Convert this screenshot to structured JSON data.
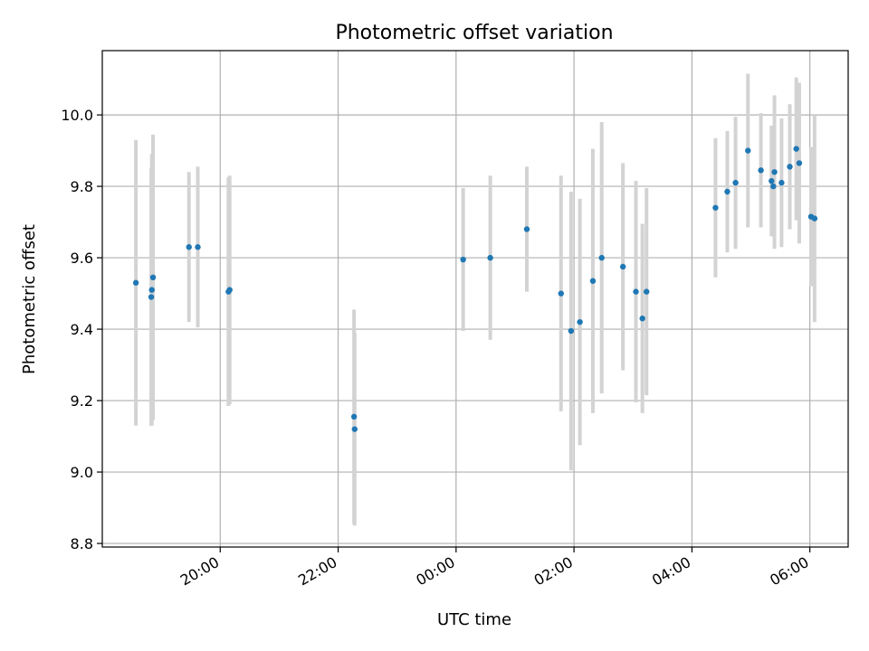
{
  "chart_data": {
    "type": "scatter",
    "title": "Photometric offset variation",
    "xlabel": "UTC time",
    "ylabel": "Photometric offset",
    "x_unit": "hours (UTC, continuing past midnight)",
    "xlim": [
      18.0,
      30.65
    ],
    "ylim": [
      8.79,
      10.18
    ],
    "x_ticks": [
      {
        "value": 20,
        "label": "20:00"
      },
      {
        "value": 22,
        "label": "22:00"
      },
      {
        "value": 24,
        "label": "00:00"
      },
      {
        "value": 26,
        "label": "02:00"
      },
      {
        "value": 28,
        "label": "04:00"
      },
      {
        "value": 30,
        "label": "06:00"
      }
    ],
    "y_ticks": [
      {
        "value": 8.8,
        "label": "8.8"
      },
      {
        "value": 9.0,
        "label": "9.0"
      },
      {
        "value": 9.2,
        "label": "9.2"
      },
      {
        "value": 9.4,
        "label": "9.4"
      },
      {
        "value": 9.6,
        "label": "9.6"
      },
      {
        "value": 9.8,
        "label": "9.8"
      },
      {
        "value": 10.0,
        "label": "10.0"
      }
    ],
    "grid": true,
    "colors": {
      "point": "#1f77b4",
      "errorbar": "#d3d3d3",
      "grid": "#b0b0b0"
    },
    "points": [
      {
        "x": 18.57,
        "y": 9.53,
        "err": 0.4
      },
      {
        "x": 18.83,
        "y": 9.49,
        "err": 0.36
      },
      {
        "x": 18.84,
        "y": 9.51,
        "err": 0.38
      },
      {
        "x": 18.86,
        "y": 9.545,
        "err": 0.4
      },
      {
        "x": 19.47,
        "y": 9.63,
        "err": 0.21
      },
      {
        "x": 19.62,
        "y": 9.63,
        "err": 0.225
      },
      {
        "x": 20.14,
        "y": 9.505,
        "err": 0.32
      },
      {
        "x": 20.16,
        "y": 9.51,
        "err": 0.32
      },
      {
        "x": 22.27,
        "y": 9.155,
        "err": 0.3
      },
      {
        "x": 22.28,
        "y": 9.12,
        "err": 0.27
      },
      {
        "x": 24.12,
        "y": 9.595,
        "err": 0.2
      },
      {
        "x": 24.58,
        "y": 9.6,
        "err": 0.23
      },
      {
        "x": 25.2,
        "y": 9.68,
        "err": 0.175
      },
      {
        "x": 25.78,
        "y": 9.5,
        "err": 0.33
      },
      {
        "x": 25.95,
        "y": 9.395,
        "err": 0.39
      },
      {
        "x": 26.1,
        "y": 9.42,
        "err": 0.345
      },
      {
        "x": 26.32,
        "y": 9.535,
        "err": 0.37
      },
      {
        "x": 26.47,
        "y": 9.6,
        "err": 0.38
      },
      {
        "x": 26.83,
        "y": 9.575,
        "err": 0.29
      },
      {
        "x": 27.05,
        "y": 9.505,
        "err": 0.31
      },
      {
        "x": 27.16,
        "y": 9.43,
        "err": 0.265
      },
      {
        "x": 27.23,
        "y": 9.505,
        "err": 0.29
      },
      {
        "x": 28.4,
        "y": 9.74,
        "err": 0.195
      },
      {
        "x": 28.6,
        "y": 9.785,
        "err": 0.17
      },
      {
        "x": 28.74,
        "y": 9.81,
        "err": 0.185
      },
      {
        "x": 28.95,
        "y": 9.9,
        "err": 0.215
      },
      {
        "x": 29.17,
        "y": 9.845,
        "err": 0.16
      },
      {
        "x": 29.35,
        "y": 9.815,
        "err": 0.155
      },
      {
        "x": 29.38,
        "y": 9.8,
        "err": 0.14
      },
      {
        "x": 29.4,
        "y": 9.84,
        "err": 0.215
      },
      {
        "x": 29.52,
        "y": 9.81,
        "err": 0.18
      },
      {
        "x": 29.66,
        "y": 9.855,
        "err": 0.175
      },
      {
        "x": 29.77,
        "y": 9.905,
        "err": 0.2
      },
      {
        "x": 29.82,
        "y": 9.865,
        "err": 0.225
      },
      {
        "x": 30.02,
        "y": 9.715,
        "err": 0.195
      },
      {
        "x": 30.08,
        "y": 9.71,
        "err": 0.29
      }
    ]
  }
}
